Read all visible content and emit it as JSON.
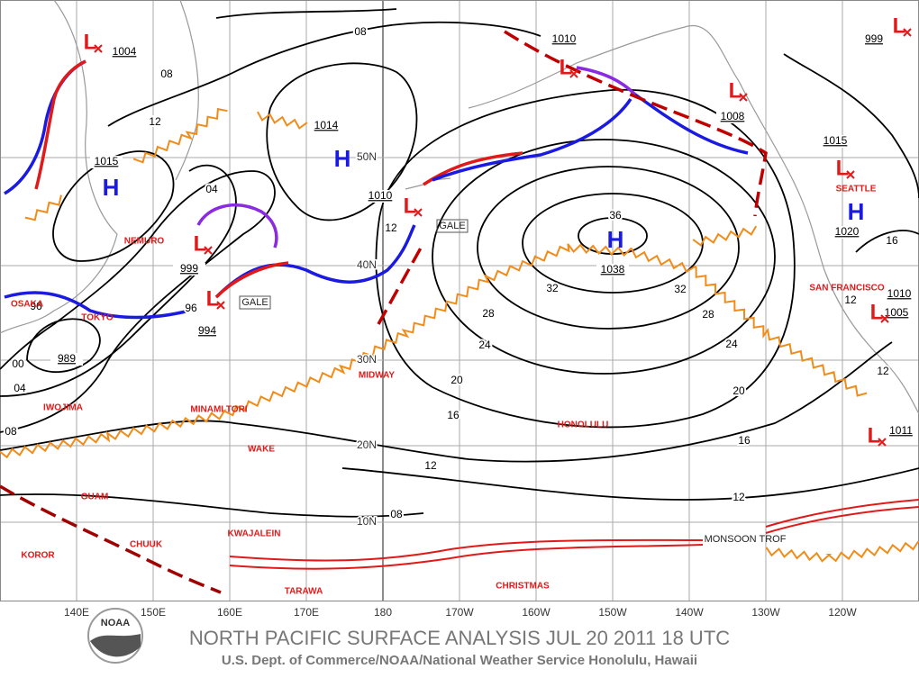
{
  "footer": {
    "title": "NORTH PACIFIC SURFACE ANALYSIS JUL 20 2011 18 UTC",
    "subtitle": "U.S. Dept. of Commerce/NOAA/National Weather Service Honolulu, Hawaii",
    "logo": "NOAA"
  },
  "map": {
    "longitude_labels": [
      "140E",
      "150E",
      "160E",
      "170E",
      "180",
      "170W",
      "160W",
      "150W",
      "140W",
      "130W",
      "120W"
    ],
    "latitude_labels": [
      "50N",
      "40N",
      "30N",
      "20N",
      "10N"
    ],
    "high_symbols": [
      "H",
      "H",
      "H",
      "H"
    ],
    "low_symbols": [
      "L",
      "L",
      "L",
      "L",
      "L",
      "L",
      "L",
      "L",
      "L",
      "L"
    ],
    "pressure_boxes": [
      "1004",
      "1015",
      "1014",
      "1010",
      "999",
      "994",
      "989",
      "1010",
      "1038",
      "1008",
      "1015",
      "1020",
      "1010",
      "1005",
      "1011",
      "999"
    ],
    "isobar_labels": [
      "08",
      "08",
      "12",
      "04",
      "96",
      "00",
      "04",
      "08",
      "12",
      "36",
      "32",
      "32",
      "28",
      "28",
      "24",
      "24",
      "20",
      "20",
      "16",
      "16",
      "12",
      "12",
      "08",
      "16",
      "12",
      "12",
      "96"
    ],
    "front_labels": [
      "GALE",
      "GALE",
      "MONSOON TROF"
    ],
    "places": [
      "NEMURO",
      "OSAKA",
      "TOKYO",
      "IWOJIMA",
      "MINAMI TORI",
      "MIDWAY",
      "WAKE",
      "GUAM",
      "KWAJALEIN",
      "CHUUK",
      "KOROR",
      "TARAWA",
      "CHRISTMAS",
      "HONOLULU",
      "SEATTLE",
      "SAN FRANCISCO"
    ]
  }
}
